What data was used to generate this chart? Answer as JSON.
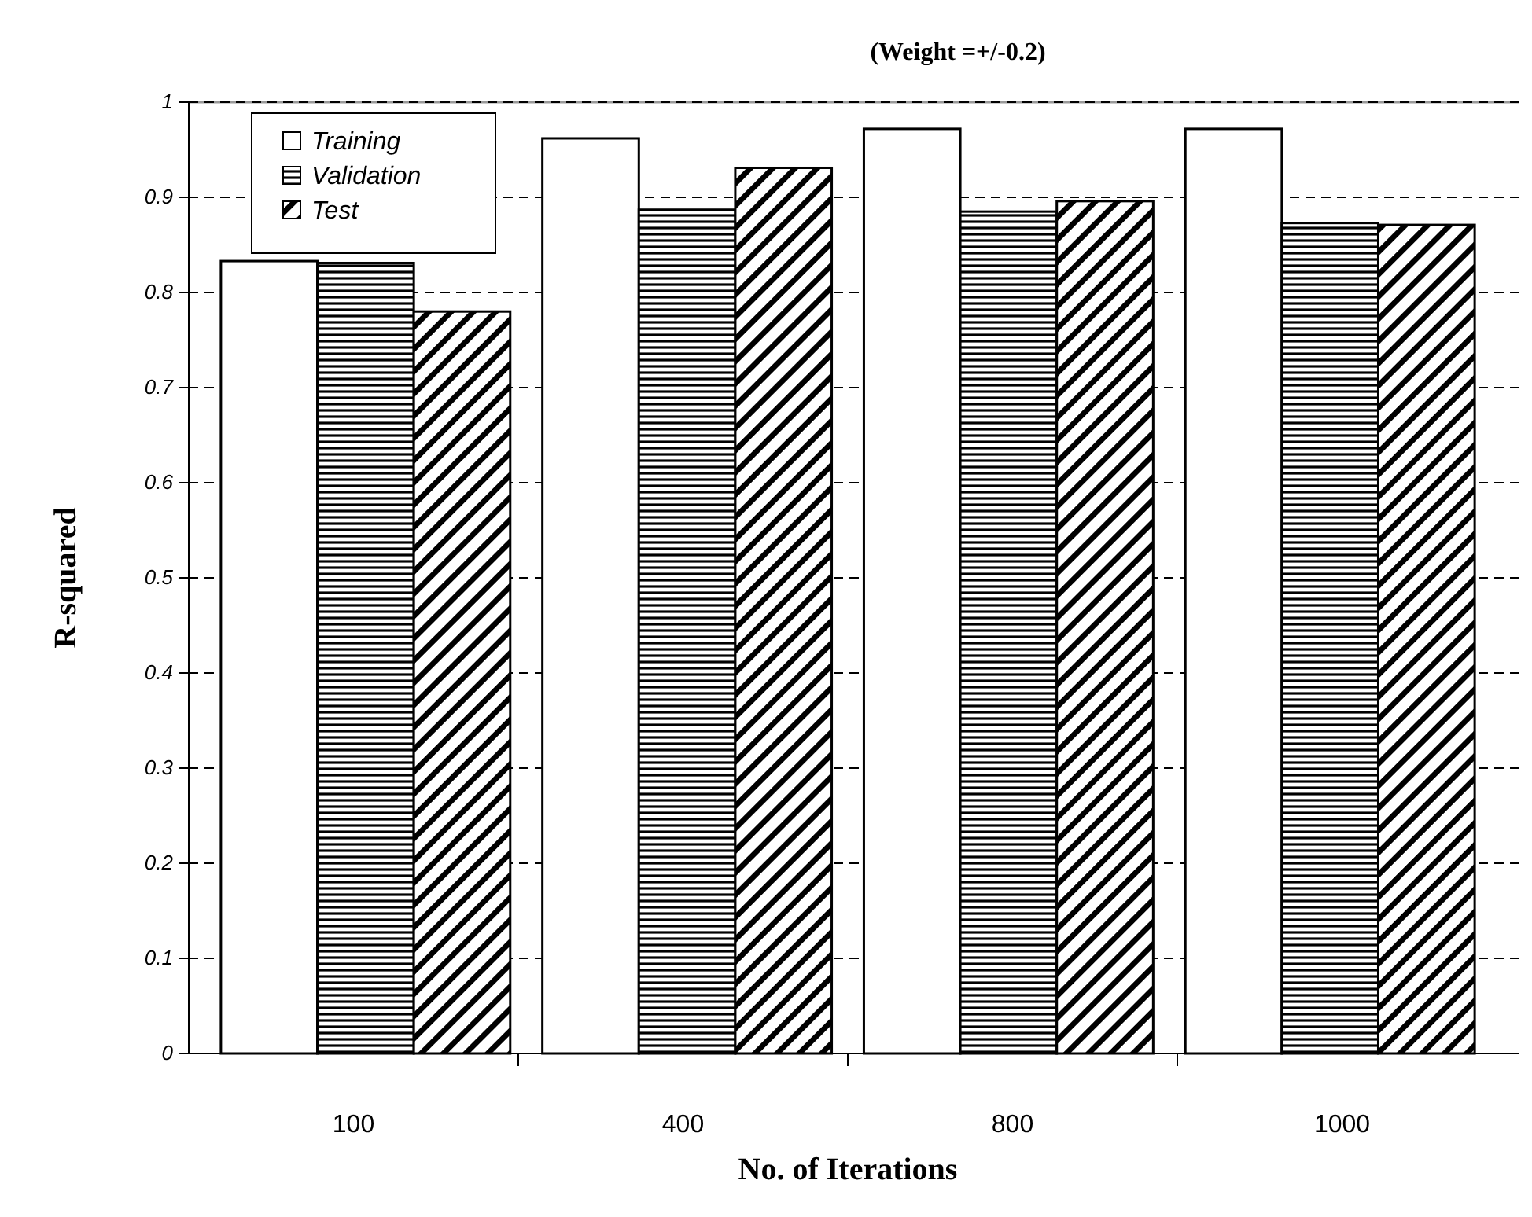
{
  "chart_data": {
    "type": "bar",
    "title": "(Weight =+/-0.2)",
    "xlabel": "No. of Iterations",
    "ylabel": "R-squared",
    "categories": [
      "100",
      "400",
      "800",
      "1000"
    ],
    "series": [
      {
        "name": "Training",
        "color": "#ffffff",
        "values": [
          0.833,
          0.962,
          0.972,
          0.972
        ]
      },
      {
        "name": "Validation",
        "color": "#000000",
        "values": [
          0.831,
          0.887,
          0.885,
          0.873
        ]
      },
      {
        "name": "Test",
        "color": "#000000",
        "values": [
          0.78,
          0.931,
          0.896,
          0.871
        ]
      }
    ],
    "ylim": [
      0,
      1
    ],
    "yticks": [
      0,
      0.1,
      0.2,
      0.3,
      0.4,
      0.5,
      0.6,
      0.7,
      0.8,
      0.9,
      1
    ],
    "grid": "y",
    "line_style": "dashed",
    "legend": "top left"
  }
}
